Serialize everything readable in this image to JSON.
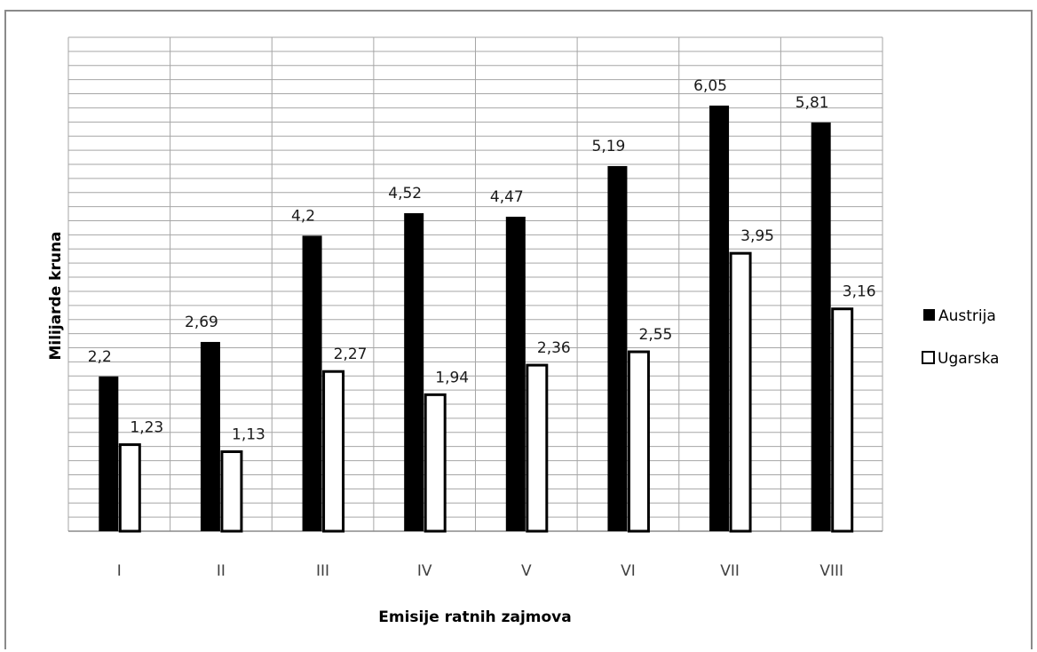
{
  "chart_data": {
    "type": "bar",
    "title": "",
    "xlabel": "Emisije ratnih zajmova",
    "ylabel": "Milijarde kruna",
    "categories": [
      "I",
      "II",
      "III",
      "IV",
      "V",
      "VI",
      "VII",
      "VIII"
    ],
    "series": [
      {
        "name": "Austrija",
        "fill": "#000000",
        "values": [
          2.2,
          2.69,
          4.2,
          4.52,
          4.47,
          5.19,
          6.05,
          5.81
        ],
        "labels": [
          "2,2",
          "2,69",
          "4,2",
          "4,52",
          "4,47",
          "5,19",
          "6,05",
          "5,81"
        ]
      },
      {
        "name": "Ugarska",
        "fill": "#ffffff",
        "values": [
          1.23,
          1.13,
          2.27,
          1.94,
          2.36,
          2.55,
          3.95,
          3.16
        ],
        "labels": [
          "1,23",
          "1,13",
          "2,27",
          "1,94",
          "2,36",
          "2,55",
          "3,95",
          "3,16"
        ]
      }
    ],
    "ylim": [
      0,
      7
    ],
    "y_axis_labels": false,
    "grid": true,
    "legend_position": "right"
  }
}
